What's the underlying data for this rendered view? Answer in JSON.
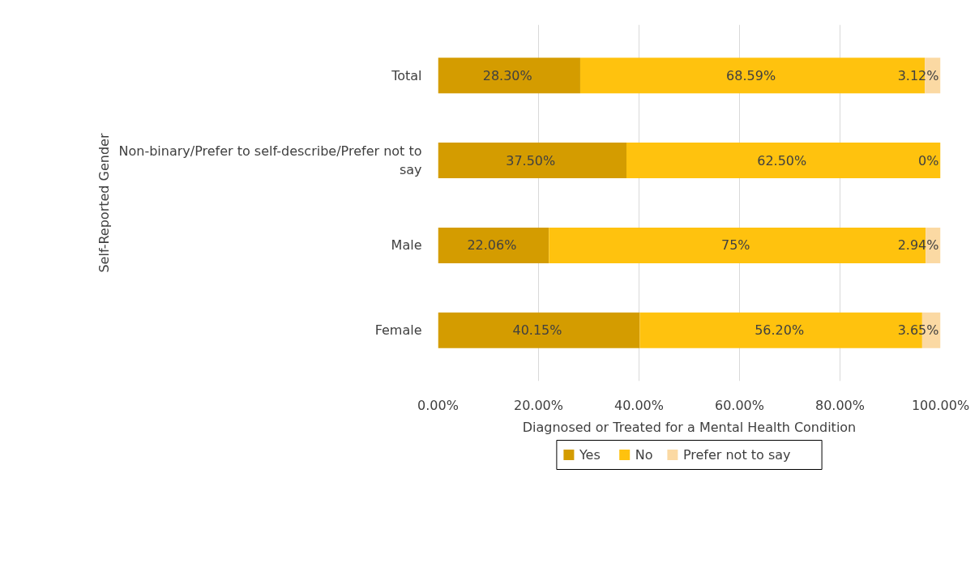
{
  "chart_data": {
    "type": "bar",
    "orientation": "horizontal",
    "stacked": true,
    "xlabel": "Diagnosed or Treated for a Mental Health Condition",
    "ylabel": "Self-Reported Gender",
    "categories": [
      "Total",
      "Non-binary/Prefer to self-describe/Prefer not to say",
      "Male",
      "Female"
    ],
    "series": [
      {
        "name": "Yes",
        "color": "#d49c00",
        "values": [
          28.3,
          37.5,
          22.06,
          40.15
        ],
        "value_labels": [
          "28.30%",
          "37.50%",
          "22.06%",
          "40.15%"
        ]
      },
      {
        "name": "No",
        "color": "#ffc20e",
        "values": [
          68.59,
          62.5,
          75,
          56.2
        ],
        "value_labels": [
          "68.59%",
          "62.50%",
          "75%",
          "56.20%"
        ]
      },
      {
        "name": "Prefer not to say",
        "color": "#fbd9a3",
        "values": [
          3.12,
          0,
          2.94,
          3.65
        ],
        "value_labels": [
          "3.12%",
          "0%",
          "2.94%",
          "3.65%"
        ]
      }
    ],
    "xlim": [
      0,
      100
    ],
    "xticks": [
      {
        "value": 0,
        "label": "0.00%"
      },
      {
        "value": 20,
        "label": "20.00%"
      },
      {
        "value": 40,
        "label": "40.00%"
      },
      {
        "value": 60,
        "label": "60.00%"
      },
      {
        "value": 80,
        "label": "80.00%"
      },
      {
        "value": 100,
        "label": "100.00%"
      }
    ],
    "grid": "x",
    "legend": "bottom"
  }
}
